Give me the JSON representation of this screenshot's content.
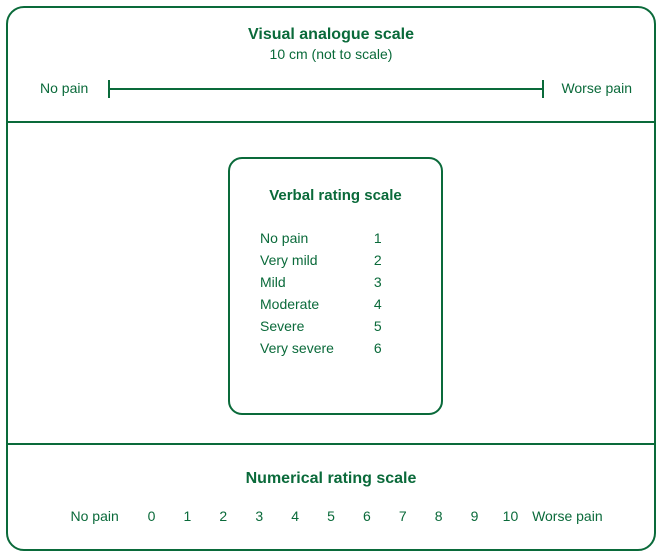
{
  "colors": {
    "ink": "#0a6a3a",
    "bg": "#ffffff"
  },
  "vas": {
    "title": "Visual analogue scale",
    "subtitle": "10 cm (not to scale)",
    "left_label": "No pain",
    "right_label": "Worse pain",
    "line_color": "#0a6a3a"
  },
  "vrs": {
    "title": "Verbal rating scale",
    "items": [
      {
        "label": "No pain",
        "value": "1"
      },
      {
        "label": "Very mild",
        "value": "2"
      },
      {
        "label": "Mild",
        "value": "3"
      },
      {
        "label": "Moderate",
        "value": "4"
      },
      {
        "label": "Severe",
        "value": "5"
      },
      {
        "label": "Very severe",
        "value": "6"
      }
    ]
  },
  "nrs": {
    "title": "Numerical rating scale",
    "left_label": "No pain",
    "right_label": "Worse pain",
    "numbers": [
      "0",
      "1",
      "2",
      "3",
      "4",
      "5",
      "6",
      "7",
      "8",
      "9",
      "10"
    ]
  },
  "style": {
    "border_radius_outer": 18,
    "border_radius_inner": 14,
    "border_width": 2,
    "title_fontsize": 16,
    "body_fontsize": 14
  }
}
